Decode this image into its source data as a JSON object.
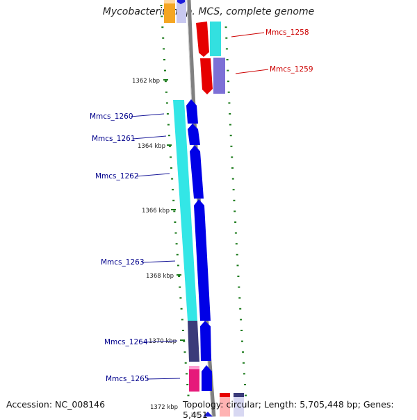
{
  "title": "Mycobacterium sp. MCS, complete genome",
  "footer": {
    "accession": "Accession: NC_008146",
    "topology": "Topology: circular; Length: 5,705,448 bp; Genes: 5,451"
  },
  "colors": {
    "backbone": "#808080",
    "tick": "#1a7a1a",
    "label_forward": "#00008b",
    "label_reverse": "#cc0000"
  },
  "kbp_marks": [
    "1362 kbp",
    "1364 kbp",
    "1366 kbp",
    "1368 kbp",
    "1370 kbp",
    "1372 kbp"
  ],
  "genes": [
    {
      "name": "Mmcs_1258",
      "strand": "reverse"
    },
    {
      "name": "Mmcs_1259",
      "strand": "reverse"
    },
    {
      "name": "Mmcs_1260",
      "strand": "forward"
    },
    {
      "name": "Mmcs_1261",
      "strand": "forward"
    },
    {
      "name": "Mmcs_1262",
      "strand": "forward"
    },
    {
      "name": "Mmcs_1263",
      "strand": "forward"
    },
    {
      "name": "Mmcs_1264",
      "strand": "forward"
    },
    {
      "name": "Mmcs_1265",
      "strand": "forward"
    }
  ]
}
